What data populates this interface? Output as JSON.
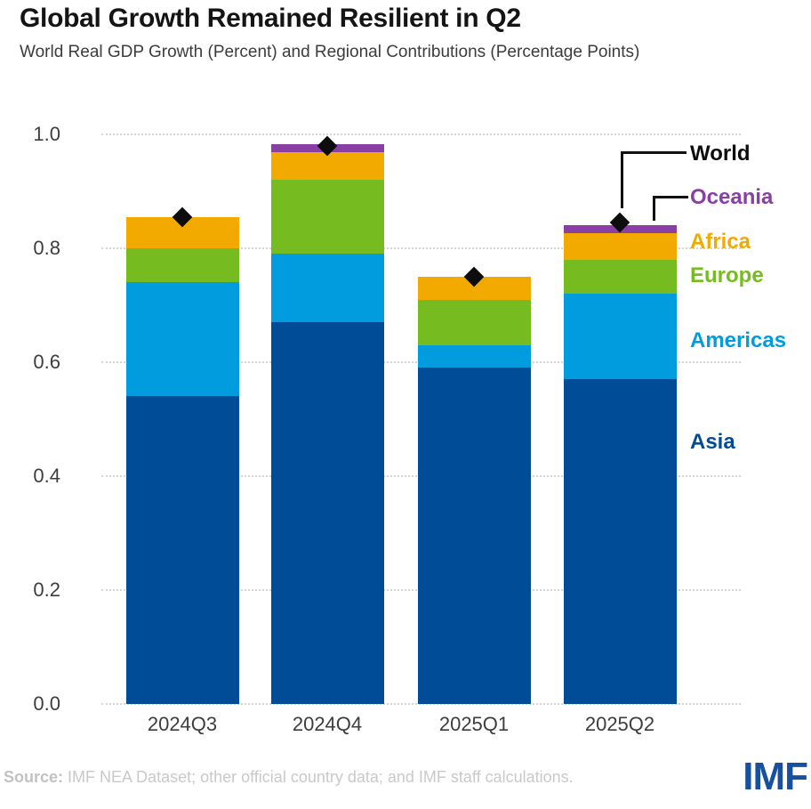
{
  "header": {
    "title": "Global Growth Remained Resilient in Q2",
    "subtitle": "World Real GDP Growth (Percent) and Regional Contributions (Percentage Points)"
  },
  "chart_data": {
    "type": "bar",
    "subtype": "stacked-bar-with-diamond-markers",
    "title": "Global Growth Remained Resilient in Q2",
    "subtitle": "World Real GDP Growth (Percent) and Regional Contributions (Percentage Points)",
    "categories": [
      "2024Q3",
      "2024Q4",
      "2025Q1",
      "2025Q2"
    ],
    "series": [
      {
        "name": "Asia",
        "color": "#004C97",
        "values": [
          0.54,
          0.67,
          0.59,
          0.57
        ]
      },
      {
        "name": "Americas",
        "color": "#009CDE",
        "values": [
          0.2,
          0.12,
          0.04,
          0.15
        ]
      },
      {
        "name": "Europe",
        "color": "#76BC21",
        "values": [
          0.06,
          0.13,
          0.08,
          0.06
        ]
      },
      {
        "name": "Africa",
        "color": "#F2A900",
        "values": [
          0.055,
          0.048,
          0.04,
          0.047
        ]
      },
      {
        "name": "Oceania",
        "color": "#8A3FA5",
        "values": [
          0.0,
          0.015,
          0.0,
          0.014
        ]
      }
    ],
    "marker_series": {
      "name": "World",
      "color": "#0d0d0d",
      "values": [
        0.855,
        0.98,
        0.75,
        0.845
      ]
    },
    "ylim": [
      0.0,
      1.0
    ],
    "yticks": [
      "0.0",
      "0.2",
      "0.4",
      "0.6",
      "0.8",
      "1.0"
    ],
    "ytick_values": [
      0.0,
      0.2,
      0.4,
      0.6,
      0.8,
      1.0
    ],
    "grid": "horizontal dotted",
    "legend_position": "right",
    "legend_order": [
      "World",
      "Oceania",
      "Africa",
      "Europe",
      "Americas",
      "Asia"
    ]
  },
  "footer": {
    "source_label": "Source:",
    "source_text": "IMF NEA Dataset; other official country data; and IMF staff calculations.",
    "logo": "IMF"
  }
}
